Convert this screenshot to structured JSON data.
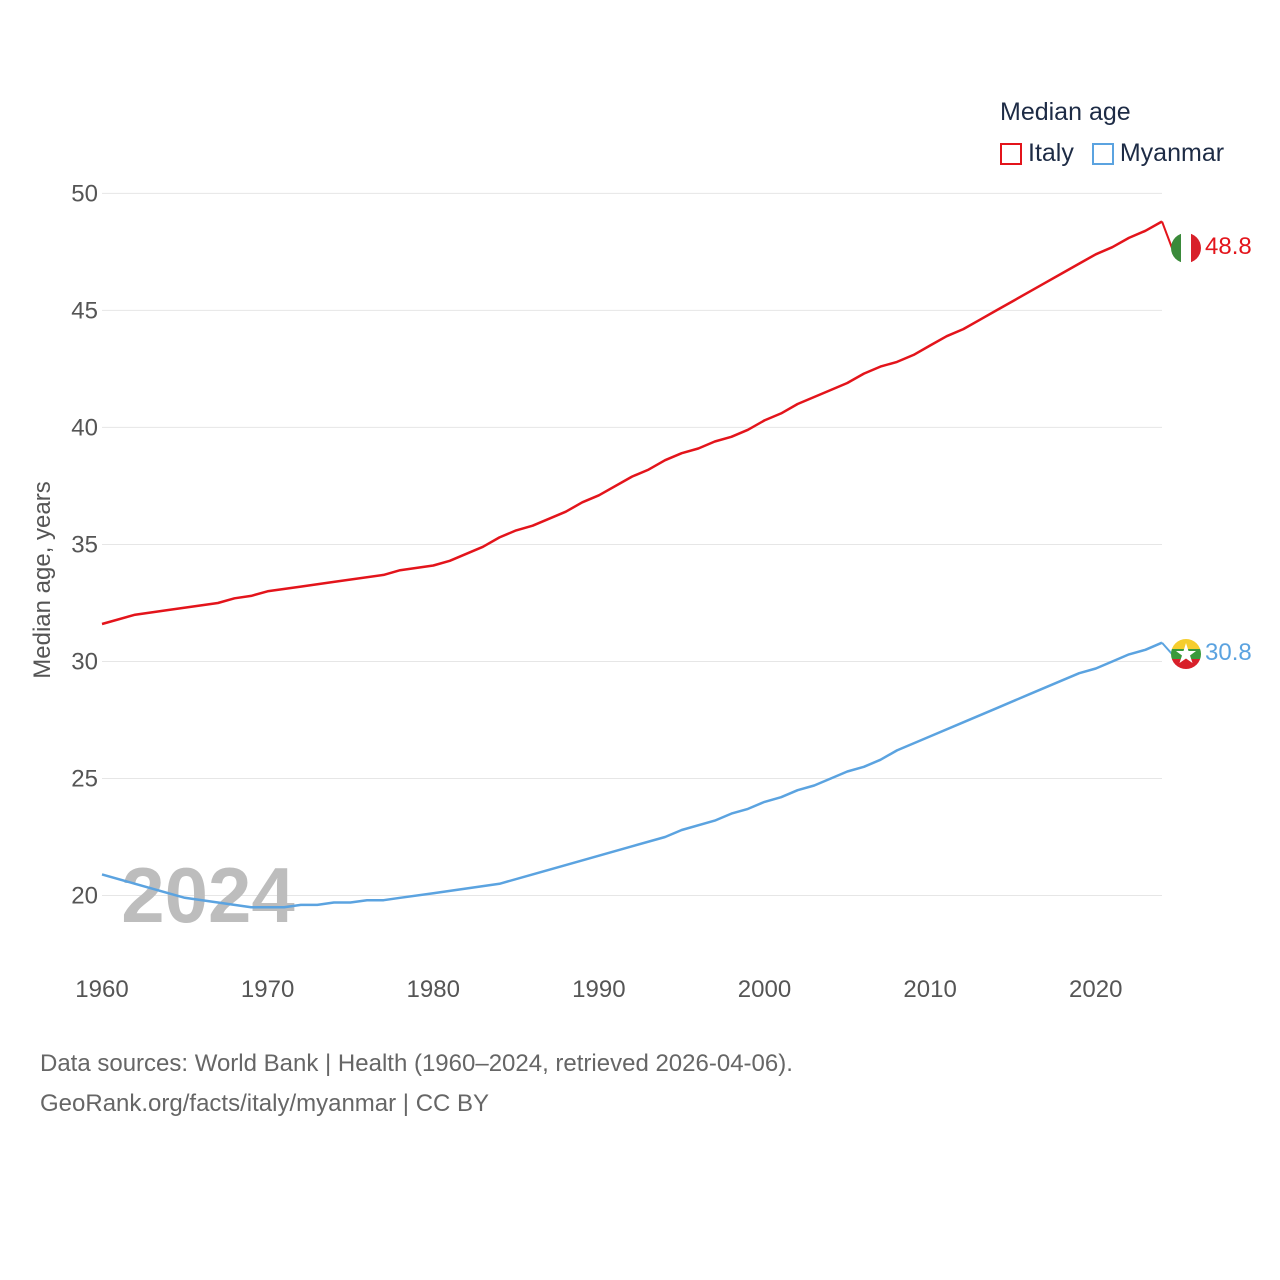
{
  "chart_data": {
    "type": "line",
    "title": "",
    "xlabel": "",
    "ylabel": "Median age, years",
    "xlim": [
      1960,
      2024
    ],
    "ylim": [
      17.5,
      51
    ],
    "x_ticks": [
      1960,
      1970,
      1980,
      1990,
      2000,
      2010,
      2020
    ],
    "y_ticks": [
      20,
      25,
      30,
      35,
      40,
      45,
      50
    ],
    "grid": true,
    "year_label": "2024",
    "legend": {
      "title": "Median age",
      "position": "top-right"
    },
    "series": [
      {
        "name": "Italy",
        "color": "#e3141b",
        "end_label": "48.8",
        "x": [
          1960,
          1962,
          1964,
          1967,
          1968,
          1969,
          1970,
          1972,
          1974,
          1977,
          1978,
          1980,
          1981,
          1983,
          1984,
          1985,
          1986,
          1988,
          1989,
          1990,
          1992,
          1993,
          1994,
          1995,
          1996,
          1997,
          1998,
          1999,
          2000,
          2001,
          2002,
          2003,
          2004,
          2005,
          2006,
          2007,
          2008,
          2009,
          2010,
          2011,
          2012,
          2013,
          2014,
          2015,
          2016,
          2017,
          2018,
          2019,
          2020,
          2021,
          2022,
          2023,
          2024
        ],
        "y": [
          31.6,
          32.0,
          32.2,
          32.5,
          32.7,
          32.8,
          33.0,
          33.2,
          33.4,
          33.7,
          33.9,
          34.1,
          34.3,
          34.9,
          35.3,
          35.6,
          35.8,
          36.4,
          36.8,
          37.1,
          37.9,
          38.2,
          38.6,
          38.9,
          39.1,
          39.4,
          39.6,
          39.9,
          40.3,
          40.6,
          41.0,
          41.3,
          41.6,
          41.9,
          42.3,
          42.6,
          42.8,
          43.1,
          43.5,
          43.9,
          44.2,
          44.6,
          45.0,
          45.4,
          45.8,
          46.2,
          46.6,
          47.0,
          47.4,
          47.7,
          48.1,
          48.4,
          48.8
        ]
      },
      {
        "name": "Myanmar",
        "color": "#5ba3e0",
        "end_label": "30.8",
        "x": [
          1960,
          1962,
          1964,
          1965,
          1967,
          1969,
          1970,
          1971,
          1972,
          1973,
          1974,
          1975,
          1976,
          1977,
          1978,
          1980,
          1982,
          1984,
          1986,
          1988,
          1990,
          1992,
          1994,
          1995,
          1997,
          1998,
          1999,
          2000,
          2001,
          2002,
          2003,
          2004,
          2005,
          2006,
          2007,
          2008,
          2010,
          2012,
          2014,
          2016,
          2018,
          2019,
          2020,
          2021,
          2022,
          2023,
          2024
        ],
        "y": [
          20.9,
          20.5,
          20.1,
          19.9,
          19.7,
          19.5,
          19.5,
          19.5,
          19.6,
          19.6,
          19.7,
          19.7,
          19.8,
          19.8,
          19.9,
          20.1,
          20.3,
          20.5,
          20.9,
          21.3,
          21.7,
          22.1,
          22.5,
          22.8,
          23.2,
          23.5,
          23.7,
          24.0,
          24.2,
          24.5,
          24.7,
          25.0,
          25.3,
          25.5,
          25.8,
          26.2,
          26.8,
          27.4,
          28.0,
          28.6,
          29.2,
          29.5,
          29.7,
          30.0,
          30.3,
          30.5,
          30.8
        ]
      }
    ]
  },
  "footer": {
    "line1": "Data sources: World Bank | Health (1960–2024, retrieved 2026-04-06).",
    "line2": "GeoRank.org/facts/italy/myanmar | CC BY"
  },
  "icons": {
    "italy": "italy-flag-icon",
    "myanmar": "myanmar-flag-icon"
  }
}
